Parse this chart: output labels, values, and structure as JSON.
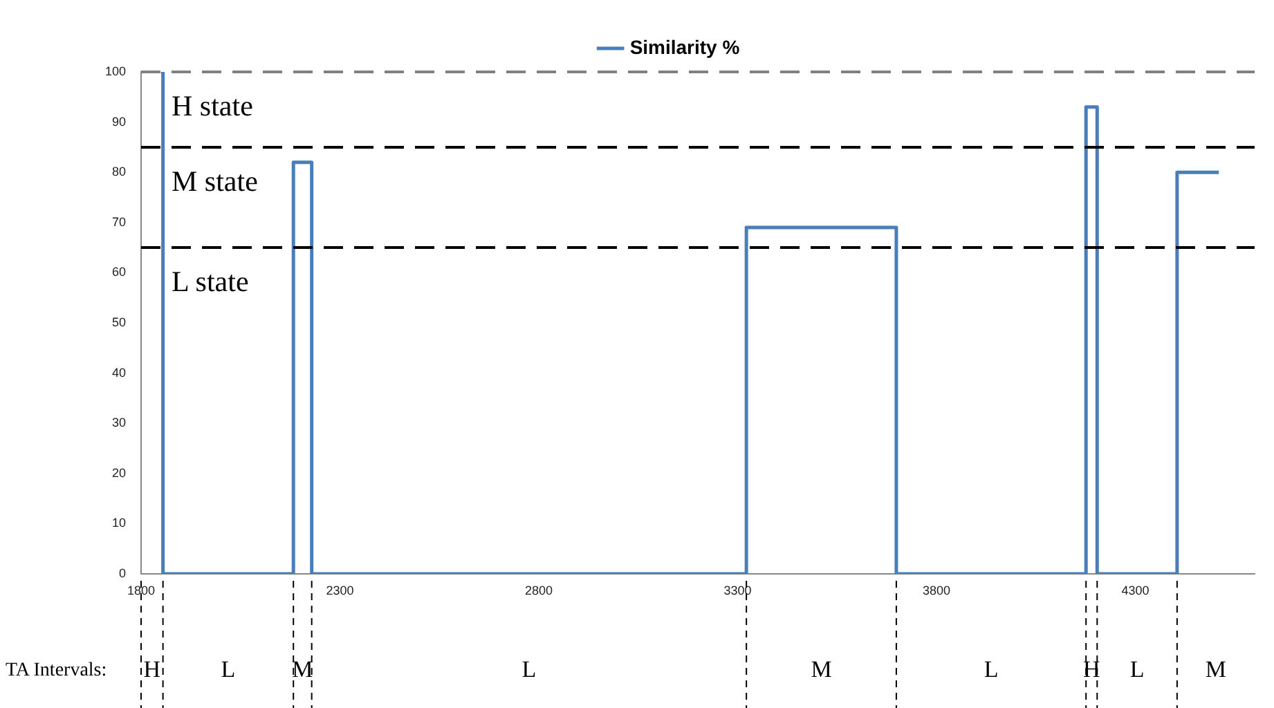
{
  "chart_data": {
    "type": "line",
    "legend": "top",
    "grid": false,
    "marker": "none",
    "line_style": "solid",
    "xlim": [
      1800,
      4600
    ],
    "xticks": [
      1800,
      2300,
      2800,
      3300,
      3800,
      4300
    ],
    "ylim": [
      0,
      100
    ],
    "yticks": [
      0,
      10,
      20,
      30,
      40,
      50,
      60,
      70,
      80,
      90,
      100
    ],
    "series": [
      {
        "name": "Similarity %",
        "color": "#4a7ebb",
        "x": [
          1850,
          1855,
          1855,
          2183,
          2183,
          2229,
          2229,
          3322,
          3322,
          3699,
          3699,
          4176,
          4176,
          4204,
          4204,
          4405,
          4405,
          4510
        ],
        "values": [
          100,
          100,
          0,
          0,
          82,
          82,
          0,
          0,
          69,
          69,
          0,
          0,
          93,
          93,
          0,
          0,
          80,
          80
        ]
      }
    ],
    "ref_lines": [
      {
        "axis": "y",
        "value": 100,
        "color": "#808080",
        "line_style": "dashed"
      },
      {
        "axis": "y",
        "value": 85,
        "color": "#000000",
        "line_style": "dashed"
      },
      {
        "axis": "y",
        "value": 65,
        "color": "#000000",
        "line_style": "dashed"
      }
    ],
    "annotations": [
      "H state",
      "M state",
      "L state",
      "TA Intervals:",
      "H",
      "L",
      "M",
      "L",
      "M",
      "L",
      "H",
      "L",
      "M"
    ]
  }
}
